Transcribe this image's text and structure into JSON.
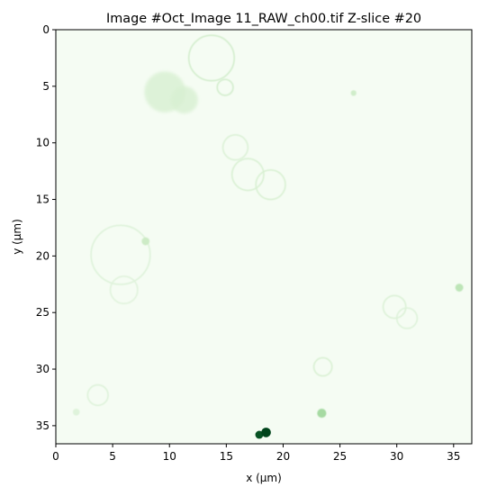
{
  "chart_data": {
    "type": "heatmap",
    "title": "Image #Oct_Image 11_RAW_ch00.tif Z-slice #20",
    "xlabel": "x (μm)",
    "ylabel": "y (μm)",
    "xlim": [
      0,
      36.6
    ],
    "ylim": [
      36.6,
      0
    ],
    "x_ticks": [
      0,
      5,
      10,
      15,
      20,
      25,
      30,
      35
    ],
    "y_ticks": [
      0,
      5,
      10,
      15,
      20,
      25,
      30,
      35
    ],
    "x_tick_labels": [
      "0",
      "5",
      "10",
      "15",
      "20",
      "25",
      "30",
      "35"
    ],
    "y_tick_labels": [
      "0",
      "5",
      "10",
      "15",
      "20",
      "25",
      "30",
      "35"
    ],
    "colormap": "Greens",
    "background_color": "#f5fcf3",
    "features": [
      {
        "kind": "ring",
        "x": 13.7,
        "y": 2.5,
        "r": 2.0,
        "intensity": 0.12
      },
      {
        "kind": "ring",
        "x": 14.9,
        "y": 5.1,
        "r": 0.7,
        "intensity": 0.12
      },
      {
        "kind": "blob",
        "x": 9.6,
        "y": 5.5,
        "r": 1.8,
        "intensity": 0.1
      },
      {
        "kind": "blob",
        "x": 11.3,
        "y": 6.2,
        "r": 1.2,
        "intensity": 0.1
      },
      {
        "kind": "ring",
        "x": 15.8,
        "y": 10.4,
        "r": 1.1,
        "intensity": 0.09
      },
      {
        "kind": "ring",
        "x": 16.9,
        "y": 12.8,
        "r": 1.4,
        "intensity": 0.1
      },
      {
        "kind": "ring",
        "x": 18.9,
        "y": 13.7,
        "r": 1.3,
        "intensity": 0.1
      },
      {
        "kind": "ring",
        "x": 5.7,
        "y": 19.9,
        "r": 2.6,
        "intensity": 0.08
      },
      {
        "kind": "ring",
        "x": 6.0,
        "y": 23.0,
        "r": 1.2,
        "intensity": 0.07
      },
      {
        "kind": "dot",
        "x": 7.9,
        "y": 18.7,
        "r": 0.35,
        "intensity": 0.22
      },
      {
        "kind": "dot",
        "x": 26.2,
        "y": 5.6,
        "r": 0.25,
        "intensity": 0.2
      },
      {
        "kind": "ring",
        "x": 29.8,
        "y": 24.5,
        "r": 1.0,
        "intensity": 0.09
      },
      {
        "kind": "ring",
        "x": 30.9,
        "y": 25.5,
        "r": 0.9,
        "intensity": 0.08
      },
      {
        "kind": "dot",
        "x": 35.5,
        "y": 22.8,
        "r": 0.35,
        "intensity": 0.28
      },
      {
        "kind": "ring",
        "x": 23.5,
        "y": 29.8,
        "r": 0.8,
        "intensity": 0.1
      },
      {
        "kind": "ring",
        "x": 3.7,
        "y": 32.3,
        "r": 0.9,
        "intensity": 0.08
      },
      {
        "kind": "dot",
        "x": 1.8,
        "y": 33.8,
        "r": 0.3,
        "intensity": 0.12
      },
      {
        "kind": "dot",
        "x": 23.4,
        "y": 33.9,
        "r": 0.4,
        "intensity": 0.35
      },
      {
        "kind": "dot",
        "x": 17.9,
        "y": 35.8,
        "r": 0.35,
        "intensity": 0.95
      },
      {
        "kind": "dot",
        "x": 18.5,
        "y": 35.6,
        "r": 0.42,
        "intensity": 1.0
      }
    ]
  }
}
